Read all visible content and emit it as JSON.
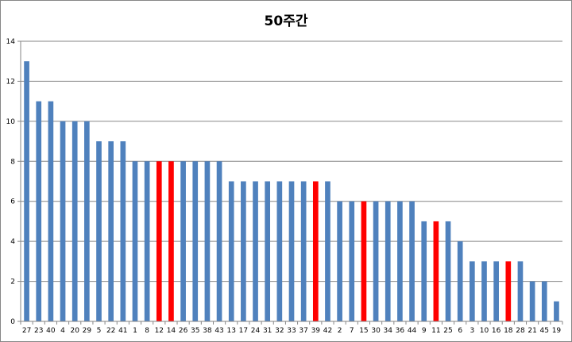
{
  "chart_data": {
    "type": "bar",
    "title": "50주간",
    "xlabel": "",
    "ylabel": "",
    "ylim": [
      0,
      14
    ],
    "yticks": [
      0,
      2,
      4,
      6,
      8,
      10,
      12,
      14
    ],
    "grid": true,
    "legend": "none",
    "categories": [
      "27",
      "23",
      "40",
      "4",
      "20",
      "29",
      "5",
      "22",
      "41",
      "1",
      "8",
      "12",
      "14",
      "26",
      "35",
      "38",
      "43",
      "13",
      "17",
      "24",
      "31",
      "32",
      "33",
      "37",
      "39",
      "42",
      "2",
      "7",
      "15",
      "30",
      "34",
      "36",
      "44",
      "9",
      "11",
      "25",
      "6",
      "3",
      "10",
      "16",
      "18",
      "28",
      "21",
      "45",
      "19"
    ],
    "values": [
      13,
      11,
      11,
      10,
      10,
      10,
      9,
      9,
      9,
      8,
      8,
      8,
      8,
      8,
      8,
      8,
      8,
      7,
      7,
      7,
      7,
      7,
      7,
      7,
      7,
      7,
      6,
      6,
      6,
      6,
      6,
      6,
      6,
      5,
      5,
      5,
      4,
      3,
      3,
      3,
      3,
      3,
      2,
      2,
      1
    ],
    "highlighted_categories": [
      "12",
      "14",
      "39",
      "15",
      "11",
      "18"
    ],
    "colors": {
      "bar": "#4f81bd",
      "highlight": "#ff0000",
      "grid": "#868686"
    }
  }
}
